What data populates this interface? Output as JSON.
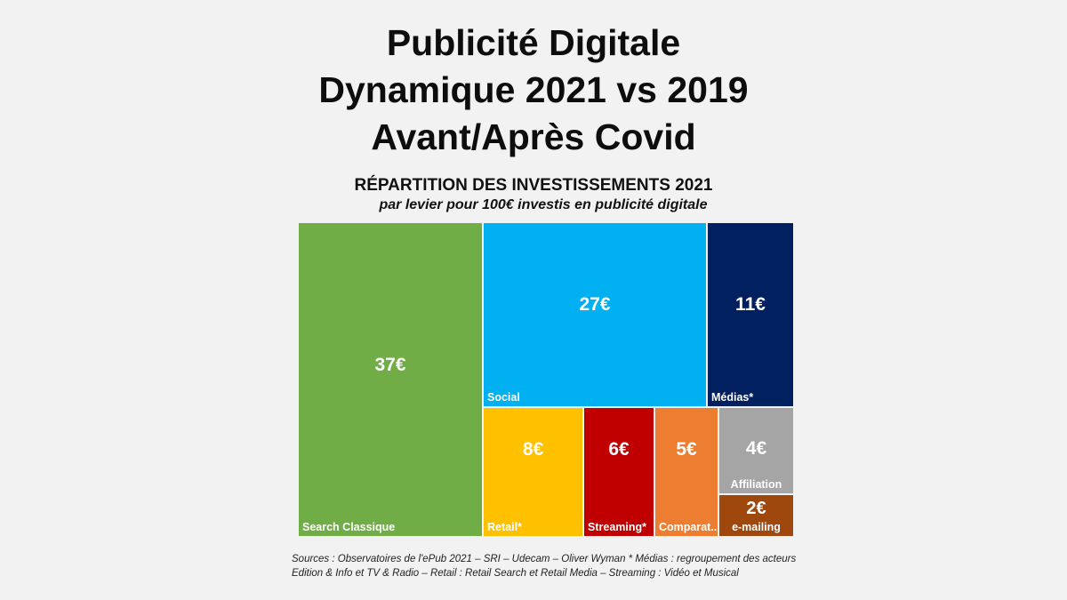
{
  "header": {
    "title_lines": [
      "Publicité Digitale",
      "Dynamique 2021 vs 2019",
      "Avant/Après Covid"
    ]
  },
  "chart_data": {
    "type": "treemap",
    "title": "RÉPARTITION DES INVESTISSEMENTS 2021",
    "subtitle": "par levier pour 100€ investis en publicité digitale",
    "unit": "€",
    "items": [
      {
        "name": "Search Classique",
        "value": 37,
        "label": "37€",
        "color": "#70ad47"
      },
      {
        "name": "Social",
        "value": 27,
        "label": "27€",
        "color": "#00b0f0"
      },
      {
        "name": "Médias*",
        "value": 11,
        "label": "11€",
        "color": "#002060"
      },
      {
        "name": "Retail*",
        "value": 8,
        "label": "8€",
        "color": "#ffc000"
      },
      {
        "name": "Streaming*",
        "value": 6,
        "label": "6€",
        "color": "#c00000"
      },
      {
        "name": "Comparat...",
        "value": 5,
        "label": "5€",
        "color": "#ed7d31"
      },
      {
        "name": "Affiliation",
        "value": 4,
        "label": "4€",
        "color": "#a5a5a5"
      },
      {
        "name": "e-mailing",
        "value": 2,
        "label": "2€",
        "color": "#9e480e"
      }
    ]
  },
  "footer": {
    "sources": "Sources : Observatoires de l'ePub 2021 – SRI – Udecam – Oliver Wyman  * Médias : regroupement des acteurs Edition & Info et TV & Radio – Retail : Retail Search et Retail Media – Streaming : Vidéo et Musical"
  }
}
